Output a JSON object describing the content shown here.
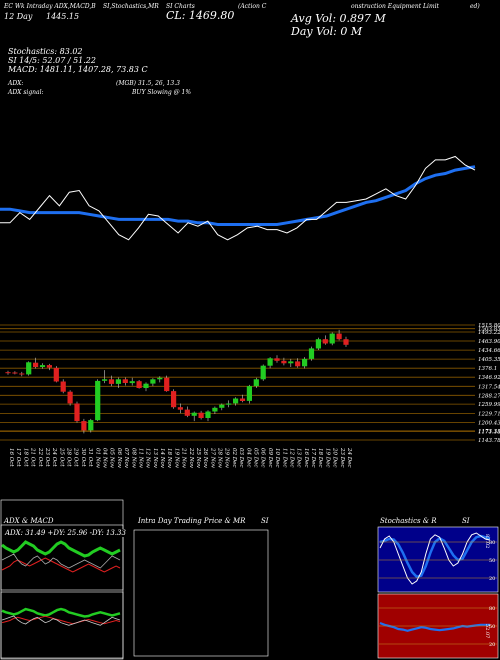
{
  "header": {
    "line1_left": "EC Wk Intraday ADX,MACD,B",
    "line1_mid1": "SI,Stochastics,MR",
    "line1_mid2": "SI Charts",
    "line1_mid3": "(Action C",
    "line1_right": "onstruction Equipment Limit",
    "line1_far": "ed)",
    "day_label": "Day",
    "date": "12 Day",
    "price": "1445.15",
    "close": "CL: 1469.80",
    "avg_vol": "Avg Vol: 0.897 M",
    "day_vol": "Day Vol: 0  M",
    "stoch_line": "Stochastics: 83.02",
    "si_line": "SI 14/5: 52.07 / 51.22",
    "macd_line": "MACD: 1481.11,  1407.28,  73.83 C",
    "adx_line": "ADX:",
    "adx_mid": "(MGB) 31.5,  26,  13.3",
    "adx_signal": "ADX  signal:",
    "signal_text": "BUY Slowing @ 1%"
  },
  "price_axis": [
    "1515.80",
    "1503.85",
    "1493.22",
    "1463.90",
    "1434.66",
    "1405.35",
    "1376.1",
    "1346.92",
    "1317.54",
    "1288.27",
    "1259.99",
    "1229.71",
    "1200.43",
    "1173.33",
    "1171.18",
    "1143.78"
  ],
  "date_labels": [
    "16 Oct",
    "17 Oct",
    "18 Oct",
    "21 Oct",
    "22 Oct",
    "23 Oct",
    "24 Oct",
    "25 Oct",
    "28 Oct",
    "29 Oct",
    "30 Oct",
    "31 Oct",
    "01 Nov",
    "04 Nov",
    "05 Nov",
    "06 Nov",
    "07 Nov",
    "08 Nov",
    "11 Nov",
    "12 Nov",
    "13 Nov",
    "14 Nov",
    "18 Nov",
    "19 Nov",
    "21 Nov",
    "22 Nov",
    "25 Nov",
    "26 Nov",
    "27 Nov",
    "28 Nov",
    "29 Nov",
    "02 Dec",
    "03 Dec",
    "04 Dec",
    "05 Dec",
    "06 Dec",
    "09 Dec",
    "10 Dec",
    "11 Dec",
    "12 Dec",
    "13 Dec",
    "16 Dec",
    "17 Dec",
    "18 Dec",
    "19 Dec",
    "20 Dec",
    "23 Dec",
    "24 Dec"
  ],
  "panels": {
    "adx_title": "ADX  & MACD",
    "adx_values": "ADX: 31.49  +DY: 25.96  -DY: 13.33",
    "intraday_title": "Intra  Day Trading Price  & MR",
    "intraday_si": "SI",
    "stoch_title": "Stochastics & R",
    "stoch_si": "SI",
    "stoch_ticks": [
      "80",
      "50",
      "20"
    ],
    "rsi_ticks": [
      "80",
      "50",
      "20"
    ],
    "stoch_value": "83.02",
    "rsi_value": "52.07"
  },
  "colors": {
    "bull": "#22cc22",
    "bear": "#e02020",
    "blue_line": "#1e6ff0",
    "white_line": "#ffffff",
    "grid": "#8a5a00",
    "rsi_bg": "#a00000",
    "stoch_bg": "#00008a"
  },
  "chart_data": [
    {
      "type": "line",
      "name": "upper-indicator",
      "series": [
        {
          "name": "white",
          "values": [
            1.6,
            1.6,
            2.2,
            1.8,
            2.5,
            3.2,
            2.6,
            3.4,
            3.5,
            2.6,
            2.3,
            1.6,
            0.9,
            0.6,
            1.3,
            2.1,
            2.0,
            1.5,
            1.0,
            1.6,
            1.4,
            1.7,
            0.9,
            0.6,
            0.9,
            1.3,
            1.4,
            1.2,
            1.2,
            1.0,
            1.3,
            1.8,
            1.8,
            2.3,
            2.8,
            2.8,
            2.9,
            3.0,
            3.3,
            3.6,
            3.2,
            3.0,
            3.8,
            4.8,
            5.3,
            5.3,
            5.5,
            5.0,
            4.7
          ]
        },
        {
          "name": "blue",
          "values": [
            2.4,
            2.4,
            2.3,
            2.2,
            2.2,
            2.2,
            2.2,
            2.2,
            2.2,
            2.1,
            2.0,
            1.9,
            1.8,
            1.8,
            1.8,
            1.8,
            1.8,
            1.8,
            1.7,
            1.7,
            1.6,
            1.6,
            1.5,
            1.5,
            1.5,
            1.5,
            1.5,
            1.5,
            1.5,
            1.6,
            1.7,
            1.8,
            1.9,
            2.0,
            2.2,
            2.4,
            2.6,
            2.8,
            2.9,
            3.1,
            3.3,
            3.5,
            3.9,
            4.2,
            4.4,
            4.5,
            4.7,
            4.8,
            4.9
          ]
        }
      ]
    },
    {
      "type": "candlestick",
      "name": "price",
      "ylim": [
        1143.78,
        1515.8
      ],
      "candles": [
        [
          1363,
          1368,
          1355,
          1360
        ],
        [
          1362,
          1366,
          1356,
          1359
        ],
        [
          1359,
          1364,
          1350,
          1356
        ],
        [
          1356,
          1398,
          1352,
          1395
        ],
        [
          1394,
          1410,
          1375,
          1380
        ],
        [
          1380,
          1392,
          1374,
          1386
        ],
        [
          1386,
          1390,
          1370,
          1378
        ],
        [
          1377,
          1383,
          1330,
          1333
        ],
        [
          1333,
          1340,
          1295,
          1300
        ],
        [
          1300,
          1305,
          1255,
          1262
        ],
        [
          1262,
          1268,
          1200,
          1205
        ],
        [
          1205,
          1212,
          1165,
          1175
        ],
        [
          1175,
          1212,
          1168,
          1208
        ],
        [
          1208,
          1340,
          1205,
          1335
        ],
        [
          1335,
          1370,
          1328,
          1340
        ],
        [
          1340,
          1352,
          1318,
          1325
        ],
        [
          1325,
          1346,
          1312,
          1340
        ],
        [
          1340,
          1346,
          1320,
          1328
        ],
        [
          1328,
          1345,
          1320,
          1334
        ],
        [
          1334,
          1338,
          1310,
          1312
        ],
        [
          1312,
          1330,
          1302,
          1326
        ],
        [
          1326,
          1344,
          1318,
          1340
        ],
        [
          1340,
          1350,
          1330,
          1345
        ],
        [
          1345,
          1352,
          1300,
          1302
        ],
        [
          1302,
          1308,
          1245,
          1250
        ],
        [
          1250,
          1262,
          1230,
          1242
        ],
        [
          1242,
          1252,
          1218,
          1222
        ],
        [
          1222,
          1236,
          1205,
          1232
        ],
        [
          1232,
          1238,
          1210,
          1215
        ],
        [
          1215,
          1240,
          1205,
          1236
        ],
        [
          1236,
          1252,
          1228,
          1248
        ],
        [
          1248,
          1262,
          1240,
          1258
        ],
        [
          1258,
          1272,
          1250,
          1262
        ],
        [
          1262,
          1282,
          1255,
          1278
        ],
        [
          1278,
          1290,
          1266,
          1270
        ],
        [
          1270,
          1322,
          1262,
          1318
        ],
        [
          1318,
          1345,
          1312,
          1340
        ],
        [
          1340,
          1388,
          1335,
          1384
        ],
        [
          1384,
          1412,
          1376,
          1408
        ],
        [
          1408,
          1418,
          1394,
          1400
        ],
        [
          1400,
          1410,
          1385,
          1392
        ],
        [
          1392,
          1406,
          1380,
          1398
        ],
        [
          1398,
          1408,
          1378,
          1382
        ],
        [
          1382,
          1412,
          1375,
          1406
        ],
        [
          1406,
          1446,
          1400,
          1440
        ],
        [
          1440,
          1475,
          1435,
          1470
        ],
        [
          1470,
          1482,
          1452,
          1456
        ],
        [
          1456,
          1492,
          1450,
          1488
        ],
        [
          1488,
          1500,
          1466,
          1470
        ],
        [
          1470,
          1478,
          1445,
          1452
        ]
      ]
    },
    {
      "type": "line",
      "name": "adx-macd-panel",
      "series": [
        {
          "name": "green",
          "values": [
            45,
            42,
            40,
            38,
            40,
            44,
            48,
            46,
            44,
            40,
            38,
            36,
            38,
            42,
            46,
            48,
            46,
            42,
            40,
            38,
            36,
            34,
            35,
            38,
            40,
            42,
            40,
            38,
            36,
            38,
            40
          ]
        },
        {
          "name": "red",
          "values": [
            20,
            22,
            24,
            28,
            30,
            28,
            26,
            24,
            26,
            28,
            30,
            32,
            30,
            28,
            26,
            24,
            22,
            20,
            18,
            20,
            22,
            24,
            26,
            24,
            22,
            20,
            18,
            20,
            22,
            24,
            22
          ]
        },
        {
          "name": "white",
          "values": [
            30,
            32,
            34,
            36,
            30,
            26,
            24,
            28,
            32,
            34,
            30,
            26,
            28,
            32,
            30,
            26,
            24,
            22,
            24,
            26,
            28,
            30,
            28,
            26,
            24,
            22,
            26,
            30,
            34,
            32,
            30
          ]
        }
      ]
    },
    {
      "type": "line",
      "name": "stochastics",
      "ylim": [
        0,
        100
      ],
      "series": [
        {
          "name": "white",
          "values": [
            70,
            85,
            90,
            80,
            60,
            40,
            20,
            10,
            15,
            30,
            60,
            85,
            92,
            88,
            70,
            50,
            40,
            45,
            60,
            80,
            92,
            95,
            90,
            85,
            83
          ]
        },
        {
          "name": "blue",
          "values": [
            80,
            82,
            85,
            84,
            76,
            62,
            45,
            30,
            22,
            24,
            40,
            62,
            80,
            86,
            82,
            70,
            58,
            50,
            52,
            66,
            80,
            88,
            90,
            88,
            86
          ]
        }
      ]
    },
    {
      "type": "line",
      "name": "rsi",
      "ylim": [
        0,
        100
      ],
      "series": [
        {
          "name": "blue",
          "values": [
            55,
            52,
            50,
            48,
            45,
            44,
            42,
            44,
            46,
            48,
            47,
            45,
            44,
            43,
            44,
            45,
            46,
            48,
            50,
            49,
            50,
            51,
            52,
            52,
            52
          ]
        }
      ]
    }
  ]
}
